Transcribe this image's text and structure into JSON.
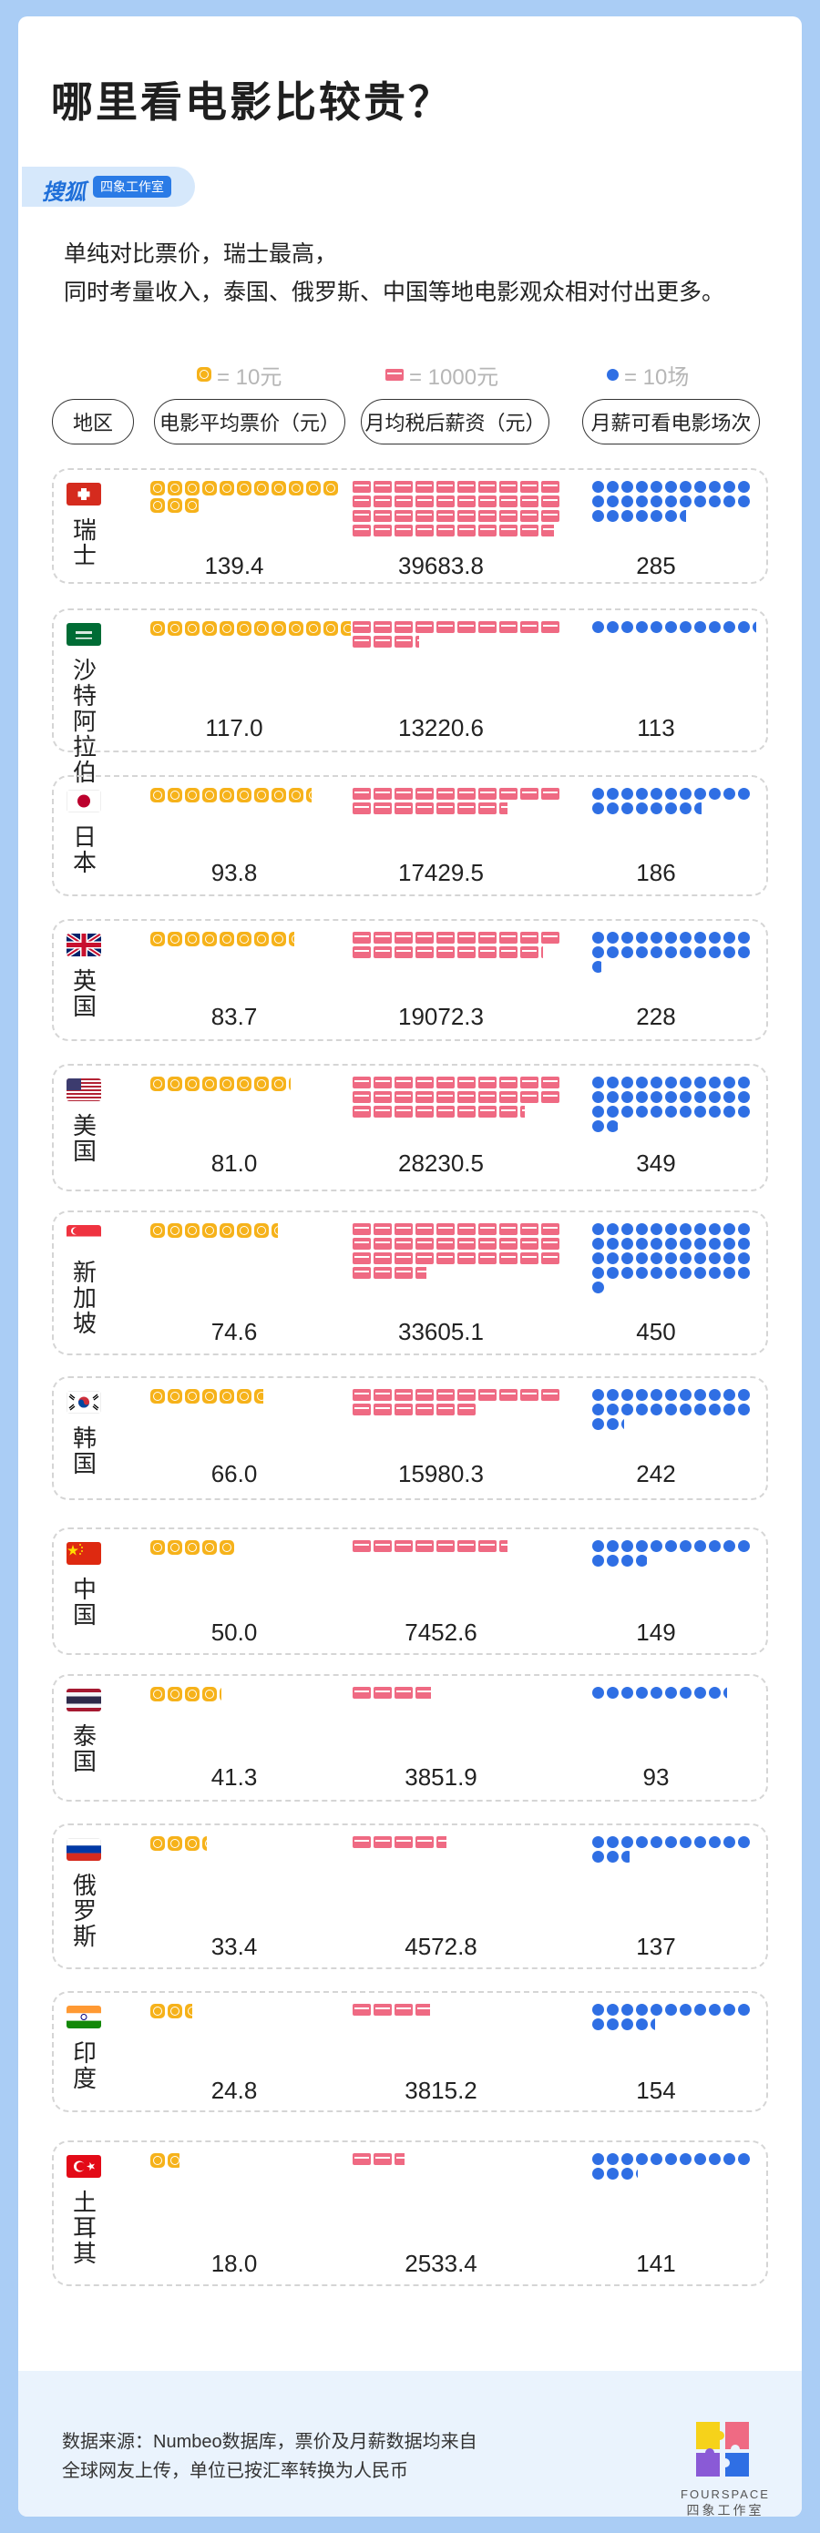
{
  "title": "哪里看电影比较贵？",
  "brand": {
    "name": "搜狐",
    "tag": "四象工作室"
  },
  "intro": [
    "单纯对比票价，瑞士最高，",
    "同时考量收入，泰国、俄罗斯、中国等地电影观众相对付出更多。"
  ],
  "legend": {
    "coin": "= 10元",
    "bill": "= 1000元",
    "dot": "= 10场"
  },
  "headers": {
    "region": "地区",
    "price": "电影平均票价（元）",
    "salary": "月均税后薪资（元）",
    "count": "月薪可看电影场次"
  },
  "colors": {
    "coin": "#f6b21a",
    "bill": "#ef6a83",
    "dot": "#2f6fe4",
    "brand": "#1f6fd9"
  },
  "chart_data": {
    "type": "table",
    "columns": [
      "地区",
      "电影平均票价（元）",
      "月均税后薪资（元）",
      "月薪可看电影场次"
    ],
    "rows": [
      {
        "country": "瑞士",
        "flag": "switzerland-flag-icon",
        "price": "139.4",
        "salary": "39683.8",
        "count": "285"
      },
      {
        "country": "沙特阿拉伯",
        "flag": "saudi-arabia-flag-icon",
        "price": "117.0",
        "salary": "13220.6",
        "count": "113"
      },
      {
        "country": "日本",
        "flag": "japan-flag-icon",
        "price": "93.8",
        "salary": "17429.5",
        "count": "186"
      },
      {
        "country": "英国",
        "flag": "uk-flag-icon",
        "price": "83.7",
        "salary": "19072.3",
        "count": "228"
      },
      {
        "country": "美国",
        "flag": "usa-flag-icon",
        "price": "81.0",
        "salary": "28230.5",
        "count": "349"
      },
      {
        "country": "新加坡",
        "flag": "singapore-flag-icon",
        "price": "74.6",
        "salary": "33605.1",
        "count": "450"
      },
      {
        "country": "韩国",
        "flag": "korea-flag-icon",
        "price": "66.0",
        "salary": "15980.3",
        "count": "242"
      },
      {
        "country": "中国",
        "flag": "china-flag-icon",
        "price": "50.0",
        "salary": "7452.6",
        "count": "149"
      },
      {
        "country": "泰国",
        "flag": "thailand-flag-icon",
        "price": "41.3",
        "salary": "3851.9",
        "count": "93"
      },
      {
        "country": "俄罗斯",
        "flag": "russia-flag-icon",
        "price": "33.4",
        "salary": "4572.8",
        "count": "137"
      },
      {
        "country": "印度",
        "flag": "india-flag-icon",
        "price": "24.8",
        "salary": "3815.2",
        "count": "154"
      },
      {
        "country": "土耳其",
        "flag": "turkey-flag-icon",
        "price": "18.0",
        "salary": "2533.4",
        "count": "141"
      }
    ],
    "units": {
      "coin": 10,
      "bill": 1000,
      "dot": 10
    }
  },
  "footer": {
    "lines": [
      "数据来源：Numbeo数据库，票价及月薪数据均来自",
      "全球网友上传，单位已按汇率转换为人民币"
    ],
    "logo": "FOURSPACE",
    "logo_sub": "四象工作室"
  }
}
